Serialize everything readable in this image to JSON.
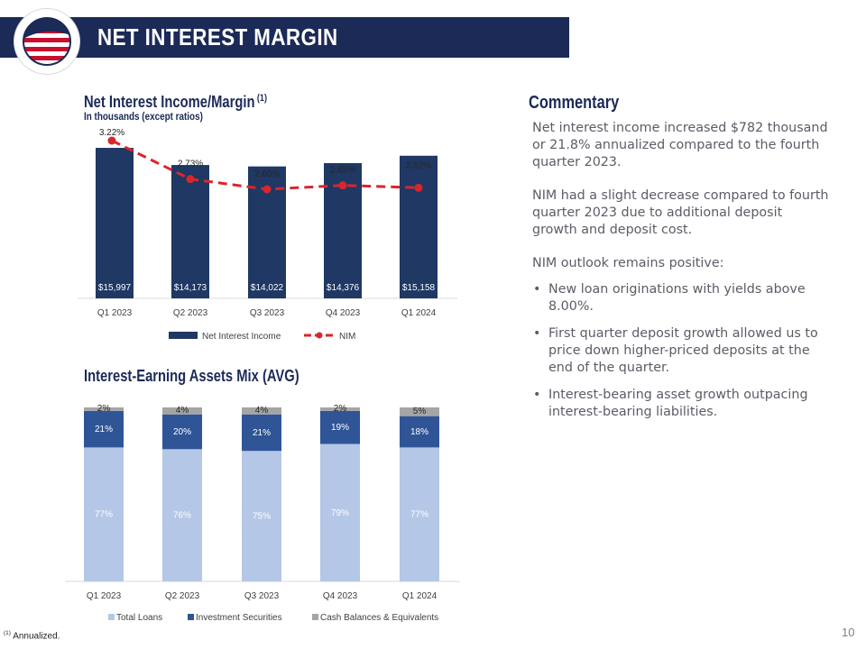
{
  "header": {
    "title": "NET INTEREST MARGIN"
  },
  "chart1": {
    "title": "Net Interest Income/Margin",
    "title_sup": "(1)",
    "subtitle": "In thousands (except ratios)"
  },
  "chart2": {
    "title": "Interest-Earning Assets Mix (AVG)"
  },
  "commentary": {
    "title": "Commentary",
    "p1": "Net interest income increased $782 thousand or 21.8% annualized compared to the fourth quarter 2023.",
    "p2": "NIM had a slight decrease compared to fourth quarter 2023 due to additional deposit growth and deposit cost.",
    "p3": "NIM outlook remains positive:",
    "bullets": [
      "New loan originations with yields above 8.00%.",
      "First quarter deposit growth allowed us to price down higher-priced deposits at the end of the quarter.",
      "Interest-bearing asset growth outpacing interest-bearing liabilities."
    ]
  },
  "footnote": {
    "sup": "(1)",
    "text": "Annualized."
  },
  "page_number": "10",
  "colors": {
    "navy": "#1f3864",
    "red": "#d9262c",
    "loans": "#b4c7e7",
    "securities": "#2f5597",
    "cash": "#a5a5a5"
  },
  "chart_data": [
    {
      "type": "bar+line",
      "categories": [
        "Q1 2023",
        "Q2 2023",
        "Q3 2023",
        "Q4 2023",
        "Q1 2024"
      ],
      "series": [
        {
          "name": "Net Interest Income",
          "values": [
            15997,
            14173,
            14022,
            14376,
            15158
          ],
          "labels": [
            "$15,997",
            "$14,173",
            "$14,022",
            "$14,376",
            "$15,158"
          ],
          "color": "#1f3864"
        },
        {
          "name": "NIM",
          "values": [
            3.22,
            2.73,
            2.6,
            2.65,
            2.62
          ],
          "labels": [
            "3.22%",
            "2.73%",
            "2.60%",
            "2.65%",
            "2.62%"
          ],
          "color": "#d9262c",
          "style": "dashed"
        }
      ],
      "legend": "bottom"
    },
    {
      "type": "stacked-bar",
      "categories": [
        "Q1 2023",
        "Q2 2023",
        "Q3 2023",
        "Q4 2023",
        "Q1 2024"
      ],
      "series": [
        {
          "name": "Total Loans",
          "values": [
            77,
            76,
            75,
            79,
            77
          ],
          "color": "#b4c7e7"
        },
        {
          "name": "Investment Securities",
          "values": [
            21,
            20,
            21,
            19,
            18
          ],
          "color": "#2f5597"
        },
        {
          "name": "Cash Balances & Equivalents",
          "values": [
            2,
            4,
            4,
            2,
            5
          ],
          "color": "#a5a5a5"
        }
      ],
      "unit": "%",
      "legend": "bottom"
    }
  ]
}
